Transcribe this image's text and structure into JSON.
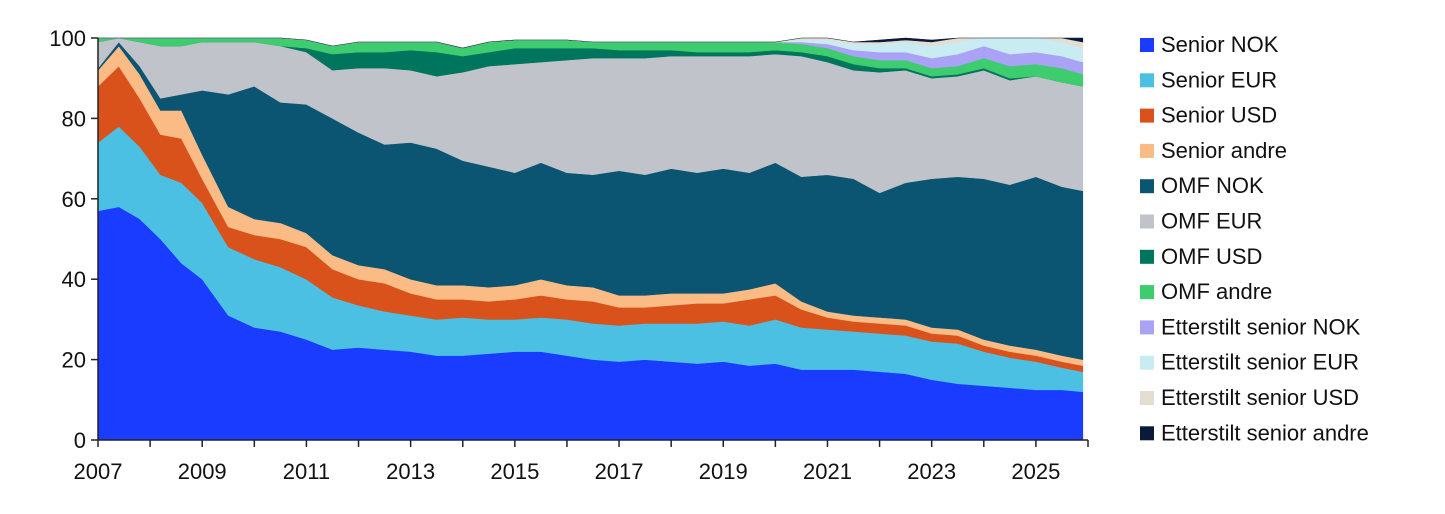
{
  "chart_data": {
    "type": "area",
    "stacked": true,
    "title": "",
    "xlabel": "",
    "ylabel": "",
    "xlim": [
      2007,
      2026
    ],
    "ylim": [
      0,
      100
    ],
    "x_ticks": [
      "2007",
      "2009",
      "2011",
      "2013",
      "2015",
      "2017",
      "2019",
      "2021",
      "2023",
      "2025"
    ],
    "y_ticks": [
      "0",
      "20",
      "40",
      "60",
      "80",
      "100"
    ],
    "grid": false,
    "legend_position": "right",
    "x": [
      2007.0,
      2007.4,
      2007.8,
      2008.2,
      2008.6,
      2009.0,
      2009.5,
      2010.0,
      2010.5,
      2011.0,
      2011.5,
      2012.0,
      2012.5,
      2013.0,
      2013.5,
      2014.0,
      2014.5,
      2015.0,
      2015.5,
      2016.0,
      2016.5,
      2017.0,
      2017.5,
      2018.0,
      2018.5,
      2019.0,
      2019.5,
      2020.0,
      2020.5,
      2021.0,
      2021.5,
      2022.0,
      2022.5,
      2023.0,
      2023.5,
      2024.0,
      2024.5,
      2025.0,
      2025.5,
      2025.9
    ],
    "series": [
      {
        "name": "Senior NOK",
        "color": "#1a3cff",
        "values": [
          57,
          58,
          55,
          50,
          44,
          40,
          31,
          28,
          27,
          25,
          22.5,
          23,
          22.5,
          22,
          21,
          21,
          21.5,
          22,
          22,
          21,
          20,
          19.5,
          20,
          19.5,
          19,
          19.5,
          18.5,
          19,
          17.5,
          17.5,
          17.5,
          17,
          16.5,
          15,
          14,
          13.5,
          13,
          12.5,
          12.5,
          12
        ]
      },
      {
        "name": "Senior EUR",
        "color": "#4bc0e3",
        "values": [
          17,
          20,
          18,
          16,
          20,
          19,
          17,
          17,
          16,
          15,
          13,
          10.5,
          9.5,
          9,
          9,
          9.5,
          8.5,
          8,
          8.5,
          9,
          9,
          9,
          9,
          9.5,
          10,
          10,
          10,
          11,
          10.5,
          10,
          9.5,
          9.5,
          9.5,
          9.5,
          10,
          8.5,
          7.5,
          7,
          5.5,
          5
        ]
      },
      {
        "name": "Senior USD",
        "color": "#d9521b",
        "values": [
          14,
          15,
          12,
          10,
          11,
          6,
          5,
          6,
          7,
          8,
          7,
          6.5,
          7,
          5.5,
          5,
          4.5,
          4.5,
          5,
          5.5,
          5,
          5.5,
          4.5,
          4,
          4.5,
          5,
          4.5,
          6.5,
          6,
          4.5,
          3,
          2.5,
          2.5,
          2.5,
          2,
          2,
          1.5,
          1.5,
          1.5,
          1.5,
          1.5
        ]
      },
      {
        "name": "Senior andre",
        "color": "#fbbb85",
        "values": [
          4,
          5,
          6,
          6,
          7,
          6,
          5,
          4,
          4,
          3.5,
          3.5,
          3.5,
          3.5,
          3.5,
          3.5,
          3.5,
          3.5,
          3.5,
          4,
          3.5,
          3.5,
          3,
          3,
          3,
          2.5,
          2.5,
          2.5,
          3,
          2,
          1.5,
          1.5,
          1.5,
          1.5,
          1.5,
          1.5,
          1.5,
          1.5,
          1.5,
          1.5,
          1.5
        ]
      },
      {
        "name": "OMF NOK",
        "color": "#0b5573",
        "values": [
          0.5,
          1,
          2,
          3,
          4,
          16,
          28,
          33,
          30,
          32,
          34,
          33,
          31,
          34,
          34,
          31,
          30,
          28,
          29,
          28,
          28,
          31,
          30,
          31,
          30,
          31,
          29,
          30,
          31,
          34,
          34,
          31,
          34,
          37,
          38,
          40,
          40,
          43,
          42,
          42
        ]
      },
      {
        "name": "OMF EUR",
        "color": "#c0c3ca",
        "values": [
          6.5,
          1,
          6,
          13,
          12,
          12,
          13,
          11,
          14,
          13,
          12,
          16,
          19,
          18,
          18,
          22,
          25,
          27,
          25,
          28,
          29,
          28,
          29,
          28,
          29,
          28,
          29,
          27,
          30,
          28,
          27,
          30,
          28,
          25,
          25,
          27,
          26,
          25,
          26,
          26
        ]
      },
      {
        "name": "OMF USD",
        "color": "#00755e",
        "values": [
          0,
          0,
          0,
          0,
          0,
          0,
          0,
          0,
          0,
          1,
          4,
          4,
          4,
          5,
          6,
          4,
          3.5,
          4,
          3.5,
          3,
          2.5,
          2,
          2,
          1.5,
          1,
          1,
          1,
          1,
          1,
          1.5,
          1.5,
          1,
          0.5,
          0.5,
          0.5,
          0.5,
          0.5,
          0,
          0,
          0
        ]
      },
      {
        "name": "OMF andre",
        "color": "#3dcc6e",
        "values": [
          1,
          0,
          1,
          2,
          2,
          1,
          1,
          1,
          2,
          2,
          2,
          2.5,
          2.5,
          2,
          2.5,
          2,
          2.5,
          2,
          2,
          2,
          1.5,
          2,
          2,
          2,
          2.5,
          2.5,
          2.5,
          2,
          2,
          2,
          2,
          2,
          2,
          2,
          2,
          2.5,
          3,
          3,
          3.5,
          3
        ]
      },
      {
        "name": "Etterstilt senior NOK",
        "color": "#a9a2f5",
        "values": [
          0,
          0,
          0,
          0,
          0,
          0,
          0,
          0,
          0,
          0,
          0,
          0,
          0,
          0,
          0,
          0,
          0,
          0,
          0,
          0,
          0,
          0,
          0,
          0,
          0,
          0,
          0,
          0,
          0.5,
          1,
          1.5,
          2,
          2,
          2.5,
          3,
          3,
          3,
          3,
          3,
          3
        ]
      },
      {
        "name": "Etterstilt senior EUR",
        "color": "#c9ebf2",
        "values": [
          0,
          0,
          0,
          0,
          0,
          0,
          0,
          0,
          0,
          0,
          0,
          0,
          0,
          0,
          0,
          0,
          0,
          0,
          0,
          0,
          0,
          0,
          0,
          0,
          0,
          0,
          0,
          0,
          0.5,
          1,
          1.5,
          2,
          2.5,
          3,
          3,
          3.5,
          4,
          3.5,
          3.5,
          3.5
        ]
      },
      {
        "name": "Etterstilt senior USD",
        "color": "#e4ddd2",
        "values": [
          0,
          0,
          0,
          0,
          0,
          0,
          0,
          0,
          0,
          0,
          0,
          0,
          0,
          0,
          0,
          0,
          0,
          0,
          0,
          0,
          0,
          0,
          0,
          0,
          0,
          0,
          0,
          0,
          0.5,
          0.5,
          0.5,
          0.5,
          0.5,
          1,
          1,
          1.5,
          1.5,
          1.5,
          1.5,
          1.5
        ]
      },
      {
        "name": "Etterstilt senior andre",
        "color": "#0b1a3a",
        "values": [
          0,
          0,
          0,
          0,
          0,
          0,
          0,
          0,
          0,
          0,
          0,
          0,
          0,
          0,
          0,
          0,
          0,
          0,
          0,
          0,
          0,
          0,
          0,
          0,
          0,
          0,
          0,
          0,
          0,
          0,
          0,
          0.5,
          0.5,
          0.5,
          0.5,
          0.5,
          0.5,
          1,
          1,
          1
        ]
      }
    ]
  }
}
